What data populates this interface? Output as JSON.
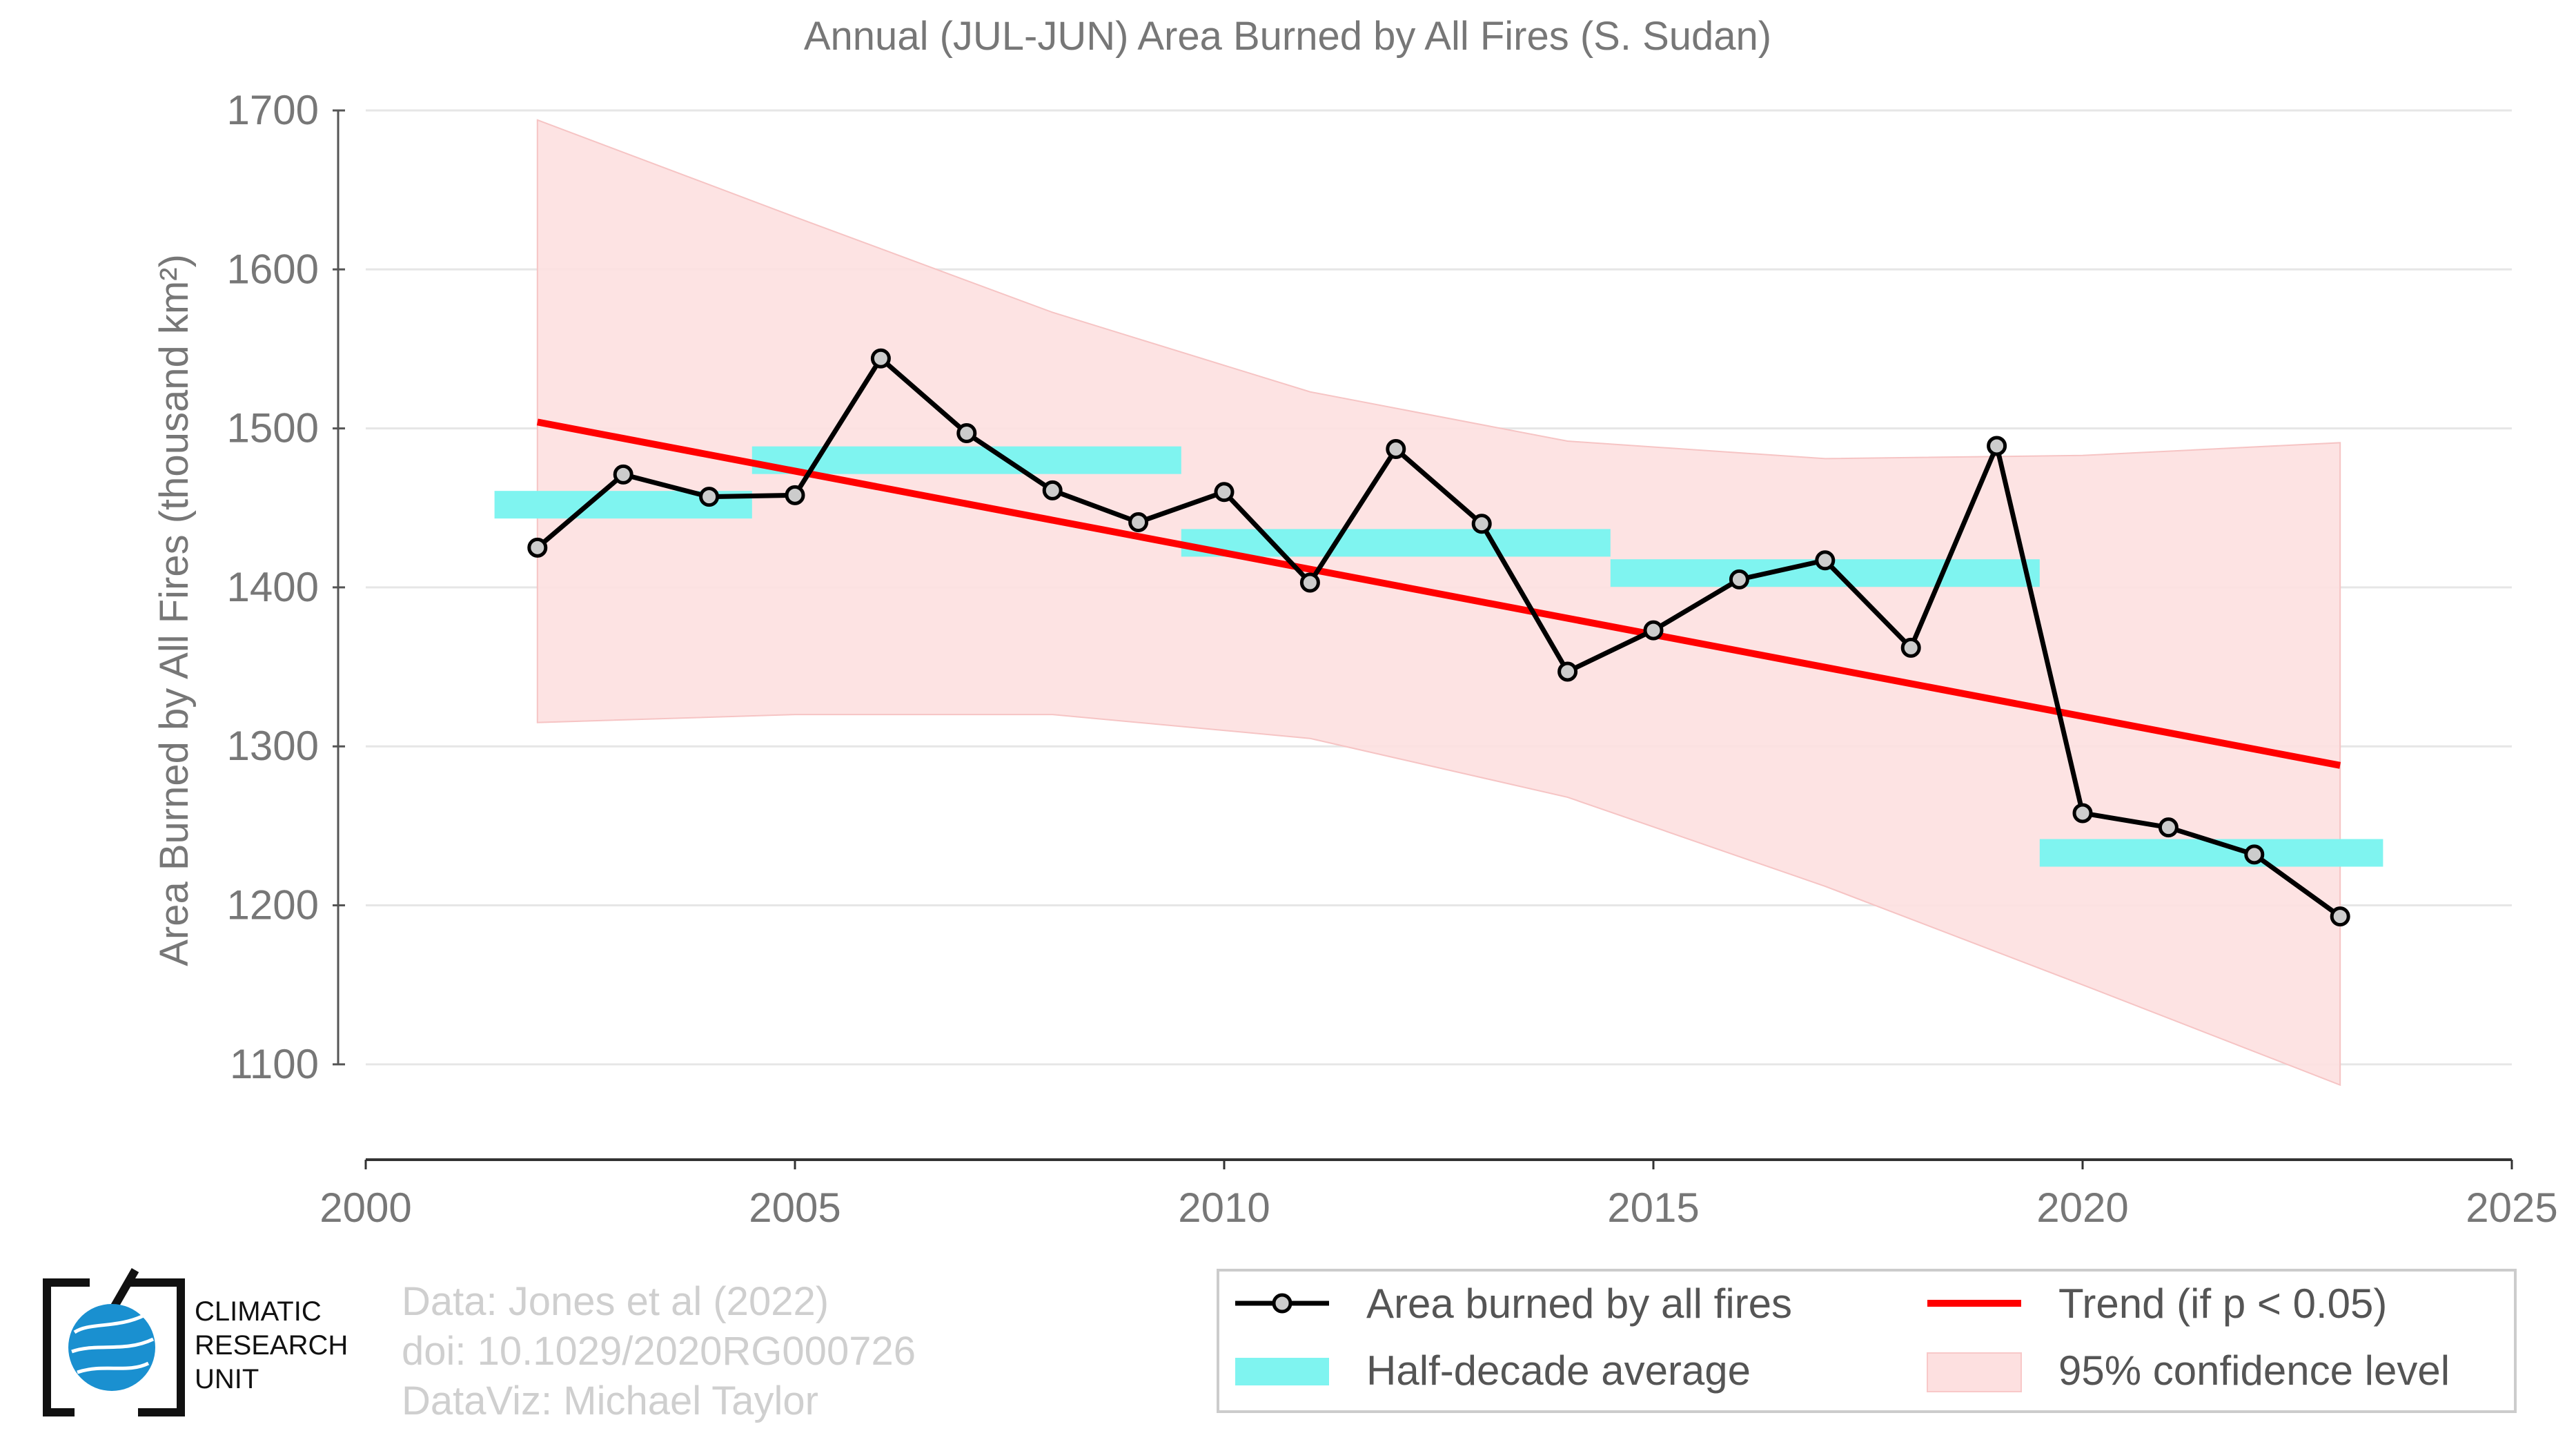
{
  "chart_data": {
    "type": "line",
    "title": "Annual (JUL-JUN) Area Burned by All Fires (S. Sudan)",
    "ylabel": "Area Burned by All Fires (thousand km²)",
    "xlabel": "",
    "xlim": [
      2000,
      2025
    ],
    "ylim": [
      1040,
      1700
    ],
    "x_ticks": [
      "2000",
      "2005",
      "2010",
      "2015",
      "2020",
      "2025"
    ],
    "y_ticks": [
      "1100",
      "1200",
      "1300",
      "1400",
      "1500",
      "1600",
      "1700"
    ],
    "grid": "horizontal",
    "legend_position": "bottom-right",
    "series": [
      {
        "name": "Area burned by all fires",
        "color": "#000000",
        "x": [
          2002,
          2003,
          2004,
          2005,
          2006,
          2007,
          2008,
          2009,
          2010,
          2011,
          2012,
          2013,
          2014,
          2015,
          2016,
          2017,
          2018,
          2019,
          2020,
          2021,
          2022,
          2023
        ],
        "values": [
          1425,
          1471,
          1457,
          1458,
          1544,
          1497,
          1461,
          1441,
          1460,
          1403,
          1487,
          1440,
          1347,
          1373,
          1405,
          1417,
          1362,
          1489,
          1258,
          1249,
          1232,
          1193
        ]
      },
      {
        "name": "Half-decade average",
        "color": "#7ff4f0",
        "segments": [
          {
            "x": [
              2001.5,
              2004.5
            ],
            "value": 1452
          },
          {
            "x": [
              2004.5,
              2009.5
            ],
            "value": 1480
          },
          {
            "x": [
              2009.5,
              2014.5
            ],
            "value": 1428
          },
          {
            "x": [
              2014.5,
              2019.5
            ],
            "value": 1409
          },
          {
            "x": [
              2019.5,
              2023.5
            ],
            "value": 1233
          }
        ]
      },
      {
        "name": "Trend (if p < 0.05)",
        "color": "#ff0000",
        "x": [
          2002,
          2023
        ],
        "values": [
          1504,
          1288
        ]
      },
      {
        "name": "95% confidence level",
        "color": "#fde0e0",
        "x": [
          2002,
          2005,
          2008,
          2011,
          2014,
          2017,
          2020,
          2023
        ],
        "upper": [
          1694,
          1633,
          1573,
          1523,
          1492,
          1481,
          1483,
          1491
        ],
        "lower": [
          1315,
          1320,
          1320,
          1305,
          1268,
          1212,
          1150,
          1087
        ]
      }
    ]
  },
  "credits": {
    "line1": "Data: Jones et al (2022)",
    "line2": "doi: 10.1029/2020RG000726",
    "line3": "DataViz: Michael Taylor"
  },
  "logo": {
    "line1": "CLIMATIC",
    "line2": "RESEARCH",
    "line3": "UNIT"
  },
  "legend": {
    "item1": "Area burned by all fires",
    "item2": "Trend (if p < 0.05)",
    "item3": "Half-decade average",
    "item4": "95% confidence level"
  }
}
